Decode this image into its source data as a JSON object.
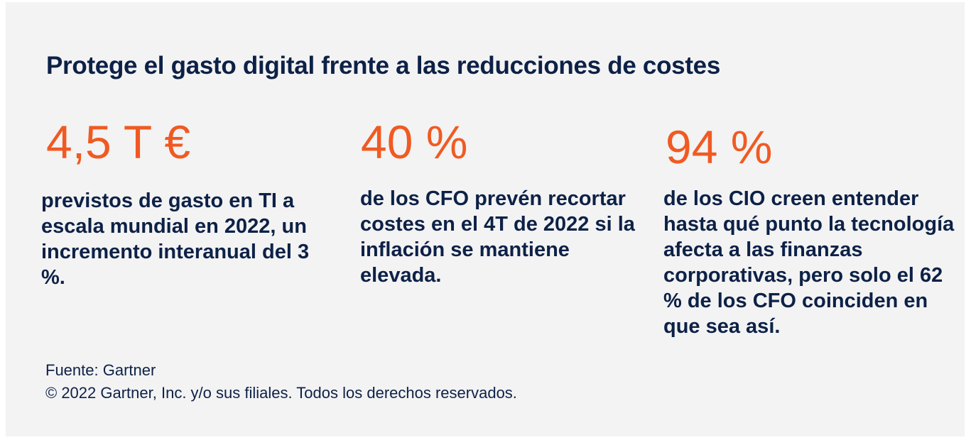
{
  "title": "Protege el gasto digital frente a las reducciones de costes",
  "stats": [
    {
      "value": "4,5 T €",
      "description": "previstos de gasto en TI a escala mundial en 2022, un incremento interanual del 3 %."
    },
    {
      "value": "40 %",
      "description": "de los CFO prevén recortar costes en el 4T de 2022 si la inflación se mantiene elevada."
    },
    {
      "value": "94 %",
      "description": "de los CIO creen entender hasta qué punto la tecnología afecta a las finanzas corporativas, pero solo el 62 % de los CFO coinciden en que sea así."
    }
  ],
  "footer": {
    "source": "Fuente: Gartner",
    "copyright": "© 2022 Gartner, Inc. y/o sus filiales. Todos los derechos reservados."
  },
  "colors": {
    "background": "#f3f3f3",
    "title": "#0d2147",
    "accent": "#f05a22"
  }
}
